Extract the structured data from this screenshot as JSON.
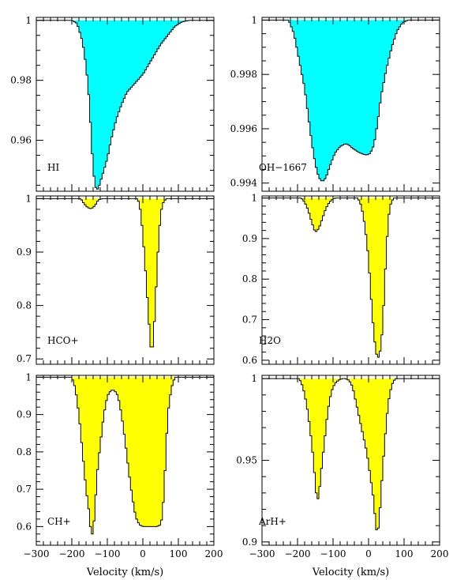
{
  "chart_data": {
    "type": "area",
    "xlabel": "Velocity (km/s)",
    "xlim": [
      -300,
      200
    ],
    "xticks": [
      -300,
      -200,
      -100,
      0,
      100,
      200
    ],
    "xtick_labels": [
      "−300",
      "−200",
      "−100",
      "0",
      "100",
      "200"
    ],
    "panels": [
      {
        "label": "HI",
        "fill": "#00ffff",
        "ylim": [
          0.943,
          1.001
        ],
        "yticks": [
          0.96,
          0.98,
          1
        ],
        "ytick_labels": [
          "0.96",
          "0.98",
          "1"
        ],
        "profile": [
          [
            -300,
            1
          ],
          [
            -200,
            1
          ],
          [
            -185,
            0.999
          ],
          [
            -170,
            0.993
          ],
          [
            -160,
            0.985
          ],
          [
            -150,
            0.972
          ],
          [
            -145,
            0.96
          ],
          [
            -140,
            0.951
          ],
          [
            -135,
            0.945
          ],
          [
            -130,
            0.9435
          ],
          [
            -125,
            0.944
          ],
          [
            -115,
            0.948
          ],
          [
            -100,
            0.954
          ],
          [
            -90,
            0.96
          ],
          [
            -75,
            0.967
          ],
          [
            -60,
            0.972
          ],
          [
            -45,
            0.976
          ],
          [
            -30,
            0.978
          ],
          [
            -15,
            0.98
          ],
          [
            0,
            0.982
          ],
          [
            15,
            0.985
          ],
          [
            30,
            0.988
          ],
          [
            50,
            0.992
          ],
          [
            70,
            0.995
          ],
          [
            90,
            0.998
          ],
          [
            110,
            0.9995
          ],
          [
            130,
            1
          ],
          [
            200,
            1
          ]
        ]
      },
      {
        "label": "OH−1667",
        "fill": "#00ffff",
        "ylim": [
          0.9937,
          1.0001
        ],
        "yticks": [
          0.994,
          0.996,
          0.998,
          1
        ],
        "ytick_labels": [
          "0.994",
          "0.996",
          "0.998",
          "1"
        ],
        "profile": [
          [
            -300,
            1
          ],
          [
            -225,
            1
          ],
          [
            -210,
            0.9995
          ],
          [
            -195,
            0.9985
          ],
          [
            -180,
            0.9975
          ],
          [
            -170,
            0.9965
          ],
          [
            -160,
            0.9955
          ],
          [
            -150,
            0.9947
          ],
          [
            -140,
            0.9942
          ],
          [
            -130,
            0.99405
          ],
          [
            -120,
            0.9942
          ],
          [
            -110,
            0.9946
          ],
          [
            -95,
            0.9951
          ],
          [
            -80,
            0.99535
          ],
          [
            -65,
            0.99545
          ],
          [
            -55,
            0.9954
          ],
          [
            -45,
            0.99528
          ],
          [
            -30,
            0.99515
          ],
          [
            -15,
            0.99506
          ],
          [
            -5,
            0.99503
          ],
          [
            5,
            0.9951
          ],
          [
            15,
            0.9954
          ],
          [
            25,
            0.9962
          ],
          [
            35,
            0.9972
          ],
          [
            50,
            0.9982
          ],
          [
            65,
            0.999
          ],
          [
            80,
            0.9996
          ],
          [
            95,
            0.9999
          ],
          [
            110,
            1
          ],
          [
            200,
            1
          ]
        ]
      },
      {
        "label": "HCO+",
        "fill": "#ffff00",
        "ylim": [
          0.69,
          1.005
        ],
        "yticks": [
          0.7,
          0.8,
          0.9,
          1
        ],
        "ytick_labels": [
          "0.7",
          "0.8",
          "0.9",
          "1"
        ],
        "profile": [
          [
            -300,
            1
          ],
          [
            -175,
            1
          ],
          [
            -165,
            0.99
          ],
          [
            -155,
            0.983
          ],
          [
            -145,
            0.981
          ],
          [
            -135,
            0.987
          ],
          [
            -125,
            0.998
          ],
          [
            -115,
            1
          ],
          [
            -15,
            1
          ],
          [
            -10,
            0.99
          ],
          [
            -5,
            0.97
          ],
          [
            0,
            0.93
          ],
          [
            5,
            0.89
          ],
          [
            10,
            0.84
          ],
          [
            15,
            0.79
          ],
          [
            20,
            0.74
          ],
          [
            25,
            0.705
          ],
          [
            30,
            0.74
          ],
          [
            35,
            0.8
          ],
          [
            40,
            0.87
          ],
          [
            45,
            0.93
          ],
          [
            50,
            0.97
          ],
          [
            55,
            0.99
          ],
          [
            65,
            1
          ],
          [
            200,
            1
          ]
        ]
      },
      {
        "label": "H2O",
        "fill": "#ffff00",
        "ylim": [
          0.59,
          1.005
        ],
        "yticks": [
          0.6,
          0.7,
          0.8,
          0.9,
          1
        ],
        "ytick_labels": [
          "0.6",
          "0.7",
          "0.8",
          "0.9",
          "1"
        ],
        "profile": [
          [
            -300,
            1
          ],
          [
            -190,
            1
          ],
          [
            -180,
            0.99
          ],
          [
            -170,
            0.97
          ],
          [
            -160,
            0.94
          ],
          [
            -150,
            0.915
          ],
          [
            -140,
            0.925
          ],
          [
            -130,
            0.95
          ],
          [
            -120,
            0.975
          ],
          [
            -110,
            0.99
          ],
          [
            -100,
            0.998
          ],
          [
            -90,
            1
          ],
          [
            -30,
            1
          ],
          [
            -20,
            0.98
          ],
          [
            -10,
            0.93
          ],
          [
            0,
            0.85
          ],
          [
            5,
            0.78
          ],
          [
            10,
            0.72
          ],
          [
            15,
            0.665
          ],
          [
            20,
            0.625
          ],
          [
            25,
            0.605
          ],
          [
            30,
            0.61
          ],
          [
            35,
            0.635
          ],
          [
            40,
            0.69
          ],
          [
            45,
            0.78
          ],
          [
            50,
            0.87
          ],
          [
            55,
            0.94
          ],
          [
            60,
            0.98
          ],
          [
            70,
            1
          ],
          [
            200,
            1
          ]
        ]
      },
      {
        "label": "CH+",
        "fill": "#ffff00",
        "ylim": [
          0.55,
          1.005
        ],
        "yticks": [
          0.6,
          0.7,
          0.8,
          0.9,
          1
        ],
        "ytick_labels": [
          "0.6",
          "0.7",
          "0.8",
          "0.9",
          "1"
        ],
        "profile": [
          [
            -300,
            1
          ],
          [
            -200,
            1
          ],
          [
            -190,
            0.97
          ],
          [
            -180,
            0.9
          ],
          [
            -170,
            0.8
          ],
          [
            -160,
            0.7
          ],
          [
            -150,
            0.63
          ],
          [
            -145,
            0.57
          ],
          [
            -140,
            0.59
          ],
          [
            -135,
            0.64
          ],
          [
            -130,
            0.73
          ],
          [
            -120,
            0.82
          ],
          [
            -110,
            0.9
          ],
          [
            -100,
            0.95
          ],
          [
            -90,
            0.965
          ],
          [
            -80,
            0.965
          ],
          [
            -70,
            0.95
          ],
          [
            -60,
            0.9
          ],
          [
            -50,
            0.83
          ],
          [
            -40,
            0.75
          ],
          [
            -30,
            0.68
          ],
          [
            -20,
            0.625
          ],
          [
            -10,
            0.605
          ],
          [
            0,
            0.6
          ],
          [
            10,
            0.6
          ],
          [
            20,
            0.6
          ],
          [
            30,
            0.6
          ],
          [
            40,
            0.6
          ],
          [
            50,
            0.605
          ],
          [
            55,
            0.63
          ],
          [
            60,
            0.7
          ],
          [
            65,
            0.8
          ],
          [
            70,
            0.9
          ],
          [
            80,
            0.97
          ],
          [
            90,
            1
          ],
          [
            200,
            1
          ]
        ]
      },
      {
        "label": "ArH+",
        "fill": "#ffff00",
        "ylim": [
          0.898,
          1.002
        ],
        "yticks": [
          0.9,
          0.95,
          1
        ],
        "ytick_labels": [
          "0.9",
          "0.95",
          "1"
        ],
        "profile": [
          [
            -300,
            1
          ],
          [
            -195,
            1
          ],
          [
            -185,
            0.995
          ],
          [
            -175,
            0.985
          ],
          [
            -165,
            0.97
          ],
          [
            -155,
            0.95
          ],
          [
            -150,
            0.935
          ],
          [
            -145,
            0.925
          ],
          [
            -140,
            0.928
          ],
          [
            -135,
            0.94
          ],
          [
            -125,
            0.96
          ],
          [
            -115,
            0.98
          ],
          [
            -105,
            0.992
          ],
          [
            -95,
            0.997
          ],
          [
            -85,
            0.999
          ],
          [
            -75,
            1
          ],
          [
            -65,
            1
          ],
          [
            -55,
            0.999
          ],
          [
            -45,
            0.995
          ],
          [
            -35,
            0.985
          ],
          [
            -25,
            0.975
          ],
          [
            -15,
            0.965
          ],
          [
            -5,
            0.955
          ],
          [
            5,
            0.94
          ],
          [
            15,
            0.925
          ],
          [
            20,
            0.91
          ],
          [
            25,
            0.905
          ],
          [
            30,
            0.912
          ],
          [
            35,
            0.93
          ],
          [
            45,
            0.96
          ],
          [
            55,
            0.985
          ],
          [
            65,
            0.996
          ],
          [
            75,
            1
          ],
          [
            200,
            1
          ]
        ]
      }
    ]
  }
}
